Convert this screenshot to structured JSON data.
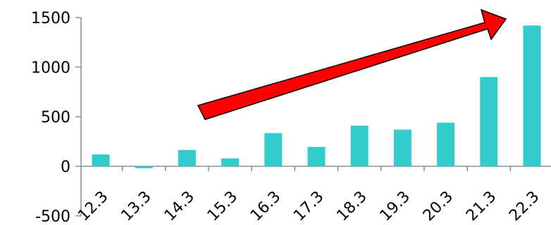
{
  "chart_data": {
    "type": "bar",
    "title": "",
    "xlabel": "",
    "ylabel": "",
    "categories": [
      "12.3",
      "13.3",
      "14.3",
      "15.3",
      "16.3",
      "17.3",
      "18.3",
      "19.3",
      "20.3",
      "21.3",
      "22.3"
    ],
    "values": [
      120,
      -20,
      165,
      80,
      335,
      195,
      410,
      370,
      440,
      900,
      1420
    ],
    "ylim": [
      -500,
      1500
    ],
    "yticks": [
      -500,
      0,
      500,
      1000,
      1500
    ],
    "ytick_labels": [
      "-500",
      "0",
      "500",
      "1000",
      "1500"
    ],
    "grid": false,
    "legend": "none",
    "colors": {
      "bar": "#33CCCC",
      "axis": "#8C8C8C",
      "arrow_fill": "#FF0000",
      "arrow_stroke": "#000000"
    },
    "annotation": {
      "type": "arrow",
      "direction": "up-right",
      "icon": "trend-arrow-icon"
    }
  }
}
